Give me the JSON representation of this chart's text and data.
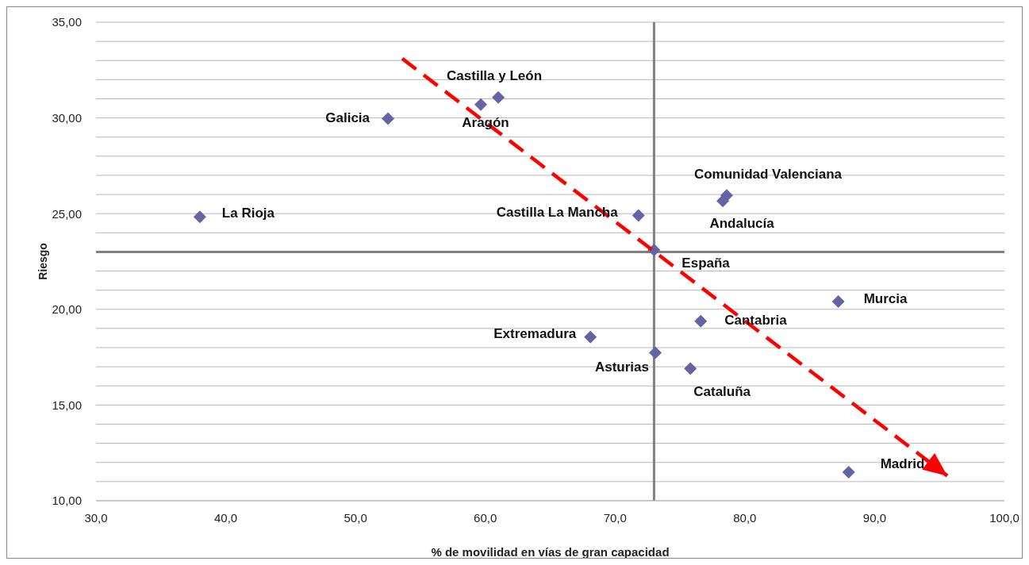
{
  "chart_data": {
    "type": "scatter",
    "xlabel": "% de movilidad en vías de gran capacidad",
    "ylabel": "Riesgo",
    "xlim": [
      30,
      100
    ],
    "ylim": [
      10,
      35
    ],
    "xticks": [
      {
        "value": 30,
        "label": "30,0"
      },
      {
        "value": 40,
        "label": "40,0"
      },
      {
        "value": 50,
        "label": "50,0"
      },
      {
        "value": 60,
        "label": "60,0"
      },
      {
        "value": 70,
        "label": "70,0"
      },
      {
        "value": 80,
        "label": "80,0"
      },
      {
        "value": 90,
        "label": "90,0"
      },
      {
        "value": 100,
        "label": "100,0"
      }
    ],
    "yticks": [
      {
        "value": 10,
        "label": "10,00"
      },
      {
        "value": 11,
        "label": null
      },
      {
        "value": 12,
        "label": null
      },
      {
        "value": 13,
        "label": null
      },
      {
        "value": 14,
        "label": null
      },
      {
        "value": 15,
        "label": "15,00"
      },
      {
        "value": 16,
        "label": null
      },
      {
        "value": 17,
        "label": null
      },
      {
        "value": 18,
        "label": null
      },
      {
        "value": 19,
        "label": null
      },
      {
        "value": 20,
        "label": "20,00"
      },
      {
        "value": 21,
        "label": null
      },
      {
        "value": 22,
        "label": null
      },
      {
        "value": 23,
        "label": null
      },
      {
        "value": 24,
        "label": null
      },
      {
        "value": 25,
        "label": "25,00"
      },
      {
        "value": 26,
        "label": null
      },
      {
        "value": 27,
        "label": null
      },
      {
        "value": 28,
        "label": null
      },
      {
        "value": 29,
        "label": null
      },
      {
        "value": 30,
        "label": "30,00"
      },
      {
        "value": 31,
        "label": null
      },
      {
        "value": 32,
        "label": null
      },
      {
        "value": 33,
        "label": null
      },
      {
        "value": 34,
        "label": null
      },
      {
        "value": 35,
        "label": "35,00"
      }
    ],
    "grid": "y",
    "marker": "diamond",
    "series": [
      {
        "color": "#6464a4",
        "x": [
          38.0,
          52.5,
          59.65,
          61.0,
          71.8,
          73.0,
          78.6,
          78.3,
          87.2,
          76.6,
          68.1,
          73.1,
          75.8,
          88.0
        ],
        "values": [
          24.83,
          29.96,
          30.7,
          31.07,
          24.9,
          23.1,
          25.95,
          25.66,
          20.41,
          19.38,
          18.55,
          17.73,
          16.9,
          11.49
        ]
      },
      {
        "type": "line",
        "color": "#ff0000",
        "line_style": "dashed",
        "marker": "none",
        "x": [
          53.6,
          95.6
        ],
        "values": [
          33.1,
          11.3
        ]
      }
    ],
    "ref_lines": [
      {
        "axis": "x",
        "value": 73,
        "color": "#808080"
      },
      {
        "axis": "y",
        "value": 23,
        "color": "#808080"
      }
    ],
    "annotations": [
      {
        "text": "La Rioja",
        "x": 38.0,
        "y": 24.83
      },
      {
        "text": "Galicia",
        "x": 52.5,
        "y": 29.96
      },
      {
        "text": "Aragón",
        "x": 59.65,
        "y": 30.7
      },
      {
        "text": "Castilla y León",
        "x": 61.0,
        "y": 31.07
      },
      {
        "text": "Castilla La Mancha",
        "x": 71.8,
        "y": 24.9
      },
      {
        "text": "España",
        "x": 73.0,
        "y": 23.1
      },
      {
        "text": "Comunidad Valenciana",
        "x": 78.6,
        "y": 25.95
      },
      {
        "text": "Andalucía",
        "x": 78.3,
        "y": 25.66
      },
      {
        "text": "Murcia",
        "x": 87.2,
        "y": 20.41
      },
      {
        "text": "Cantabria",
        "x": 76.6,
        "y": 19.38
      },
      {
        "text": "Extremadura",
        "x": 68.1,
        "y": 18.55
      },
      {
        "text": "Asturias",
        "x": 73.1,
        "y": 17.73
      },
      {
        "text": "Cataluña",
        "x": 75.8,
        "y": 16.9
      },
      {
        "text": "Madrid",
        "x": 88.0,
        "y": 11.49
      }
    ]
  }
}
